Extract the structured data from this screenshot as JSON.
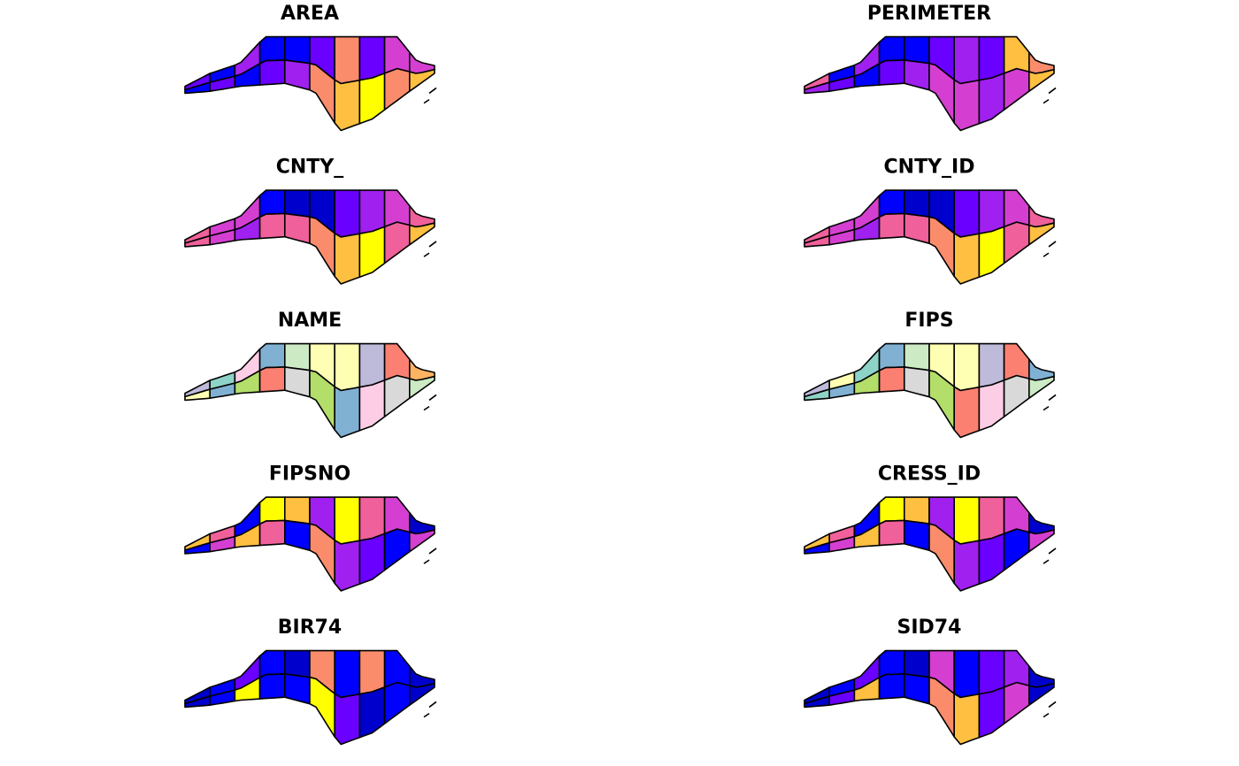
{
  "panels": [
    {
      "title": "AREA",
      "colors": [
        "#6a00ff",
        "#0000ff",
        "#a020f0",
        "#0000ff",
        "#0000ff",
        "#6a00ff",
        "#fa8c6c",
        "#6a00ff",
        "#d43fd1",
        "#d43fd1",
        "#0000ff",
        "#6a00ff",
        "#0000ff",
        "#6a00ff",
        "#a020f0",
        "#fa8c6c",
        "#ffbf40",
        "#ffff00",
        "#fa8c6c",
        "#ffbf40"
      ]
    },
    {
      "title": "PERIMETER",
      "colors": [
        "#f0609a",
        "#0000ff",
        "#a020f0",
        "#0000ff",
        "#0000ff",
        "#6a00ff",
        "#a020f0",
        "#6a00ff",
        "#ffbf40",
        "#fa8c6c",
        "#a020f0",
        "#6a00ff",
        "#0000ff",
        "#6a00ff",
        "#a020f0",
        "#d43fd1",
        "#d43fd1",
        "#a020f0",
        "#d43fd1",
        "#ffbf40"
      ]
    },
    {
      "title": "CNTY_",
      "colors": [
        "#f0609a",
        "#d43fd1",
        "#d43fd1",
        "#0000ff",
        "#0000cc",
        "#0000cc",
        "#6a00ff",
        "#a020f0",
        "#d43fd1",
        "#f0609a",
        "#f0609a",
        "#d43fd1",
        "#a020f0",
        "#f0609a",
        "#f0609a",
        "#fa8c6c",
        "#ffbf40",
        "#ffff00",
        "#f0609a",
        "#ffbf40"
      ]
    },
    {
      "title": "CNTY_ID",
      "colors": [
        "#f0609a",
        "#d43fd1",
        "#d43fd1",
        "#0000ff",
        "#0000cc",
        "#0000cc",
        "#6a00ff",
        "#a020f0",
        "#d43fd1",
        "#f0609a",
        "#f0609a",
        "#d43fd1",
        "#a020f0",
        "#f0609a",
        "#f0609a",
        "#fa8c6c",
        "#ffbf40",
        "#ffff00",
        "#f0609a",
        "#ffbf40"
      ]
    },
    {
      "title": "NAME",
      "colors": [
        "#bebada",
        "#8dd3c7",
        "#fccde5",
        "#80b1d3",
        "#ccebc5",
        "#ffffb3",
        "#ffffb3",
        "#bebada",
        "#fb8072",
        "#fdb462",
        "#ffffb3",
        "#80b1d3",
        "#b3de69",
        "#fb8072",
        "#d9d9d9",
        "#b3de69",
        "#80b1d3",
        "#fccde5",
        "#d9d9d9",
        "#ccebc5"
      ]
    },
    {
      "title": "FIPS",
      "colors": [
        "#bebada",
        "#ffffb3",
        "#8dd3c7",
        "#80b1d3",
        "#ccebc5",
        "#ffffb3",
        "#ffffb3",
        "#bebada",
        "#fb8072",
        "#80b1d3",
        "#8dd3c7",
        "#80b1d3",
        "#b3de69",
        "#fb8072",
        "#d9d9d9",
        "#b3de69",
        "#fb8072",
        "#fccde5",
        "#d9d9d9",
        "#ccebc5"
      ]
    },
    {
      "title": "FIPSNO",
      "colors": [
        "#ffbf40",
        "#f0609a",
        "#0000ff",
        "#ffff00",
        "#ffbf40",
        "#a020f0",
        "#ffff00",
        "#f0609a",
        "#d43fd1",
        "#0000cc",
        "#0000ff",
        "#d43fd1",
        "#ffbf40",
        "#f0609a",
        "#0000ff",
        "#fa8c6c",
        "#a020f0",
        "#6a00ff",
        "#0000ff",
        "#d43fd1"
      ]
    },
    {
      "title": "CRESS_ID",
      "colors": [
        "#ffbf40",
        "#f0609a",
        "#0000ff",
        "#ffff00",
        "#ffbf40",
        "#a020f0",
        "#ffff00",
        "#f0609a",
        "#d43fd1",
        "#0000cc",
        "#0000ff",
        "#d43fd1",
        "#ffbf40",
        "#f0609a",
        "#0000ff",
        "#fa8c6c",
        "#a020f0",
        "#6a00ff",
        "#0000ff",
        "#d43fd1"
      ]
    },
    {
      "title": "BIR74",
      "colors": [
        "#0000cc",
        "#0000ff",
        "#6a00ff",
        "#0000ff",
        "#0000cc",
        "#fa8c6c",
        "#0000ff",
        "#fa8c6c",
        "#0000ff",
        "#0000cc",
        "#0000cc",
        "#0000ff",
        "#ffff00",
        "#0000ff",
        "#0000ff",
        "#ffff00",
        "#6a00ff",
        "#0000cc",
        "#0000ff",
        "#0000cc"
      ]
    },
    {
      "title": "SID74",
      "colors": [
        "#0000cc",
        "#0000ff",
        "#6a00ff",
        "#0000ff",
        "#0000cc",
        "#d43fd1",
        "#0000ff",
        "#6a00ff",
        "#a020f0",
        "#0000cc",
        "#0000cc",
        "#6a00ff",
        "#ffbf40",
        "#0000ff",
        "#0000ff",
        "#fa8c6c",
        "#ffbf40",
        "#6a00ff",
        "#d43fd1",
        "#0000cc"
      ]
    }
  ]
}
